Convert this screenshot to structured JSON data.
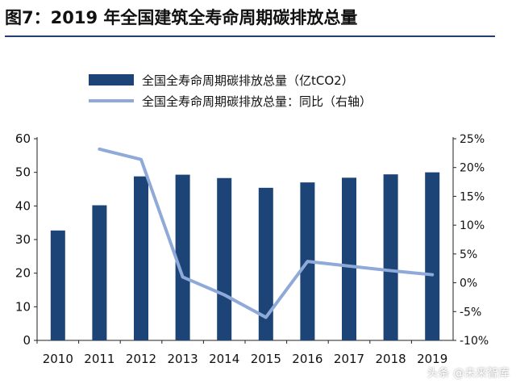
{
  "figure_title": "图7：2019 年全国建筑全寿命周期碳排放总量",
  "watermark": "头条 @未来智库",
  "colors": {
    "bar": "#1d4477",
    "line": "#8fa9d9"
  },
  "chart_data": {
    "type": "bar",
    "categories": [
      "2010",
      "2011",
      "2012",
      "2013",
      "2014",
      "2015",
      "2016",
      "2017",
      "2018",
      "2019"
    ],
    "series": [
      {
        "name": "全国全寿命周期碳排放总量（亿tCO2）",
        "type": "bar",
        "axis": "left",
        "values": [
          32.7,
          40.2,
          48.8,
          49.3,
          48.3,
          45.4,
          47.0,
          48.4,
          49.4,
          50.0
        ]
      },
      {
        "name": "全国全寿命周期碳排放总量：同比（右轴）",
        "type": "line",
        "axis": "right",
        "values": [
          null,
          23.2,
          21.4,
          1.0,
          -2.1,
          -6.0,
          3.7,
          2.9,
          2.1,
          1.4
        ]
      }
    ],
    "y_left": {
      "ylim": [
        0,
        60
      ],
      "ticks": [
        "0",
        "10",
        "20",
        "30",
        "40",
        "50",
        "60"
      ]
    },
    "y_right": {
      "ylim": [
        -10,
        25
      ],
      "ticks": [
        "-10%",
        "-5%",
        "0%",
        "5%",
        "10%",
        "15%",
        "20%",
        "25%"
      ]
    },
    "legend_position": "top",
    "grid": false
  }
}
